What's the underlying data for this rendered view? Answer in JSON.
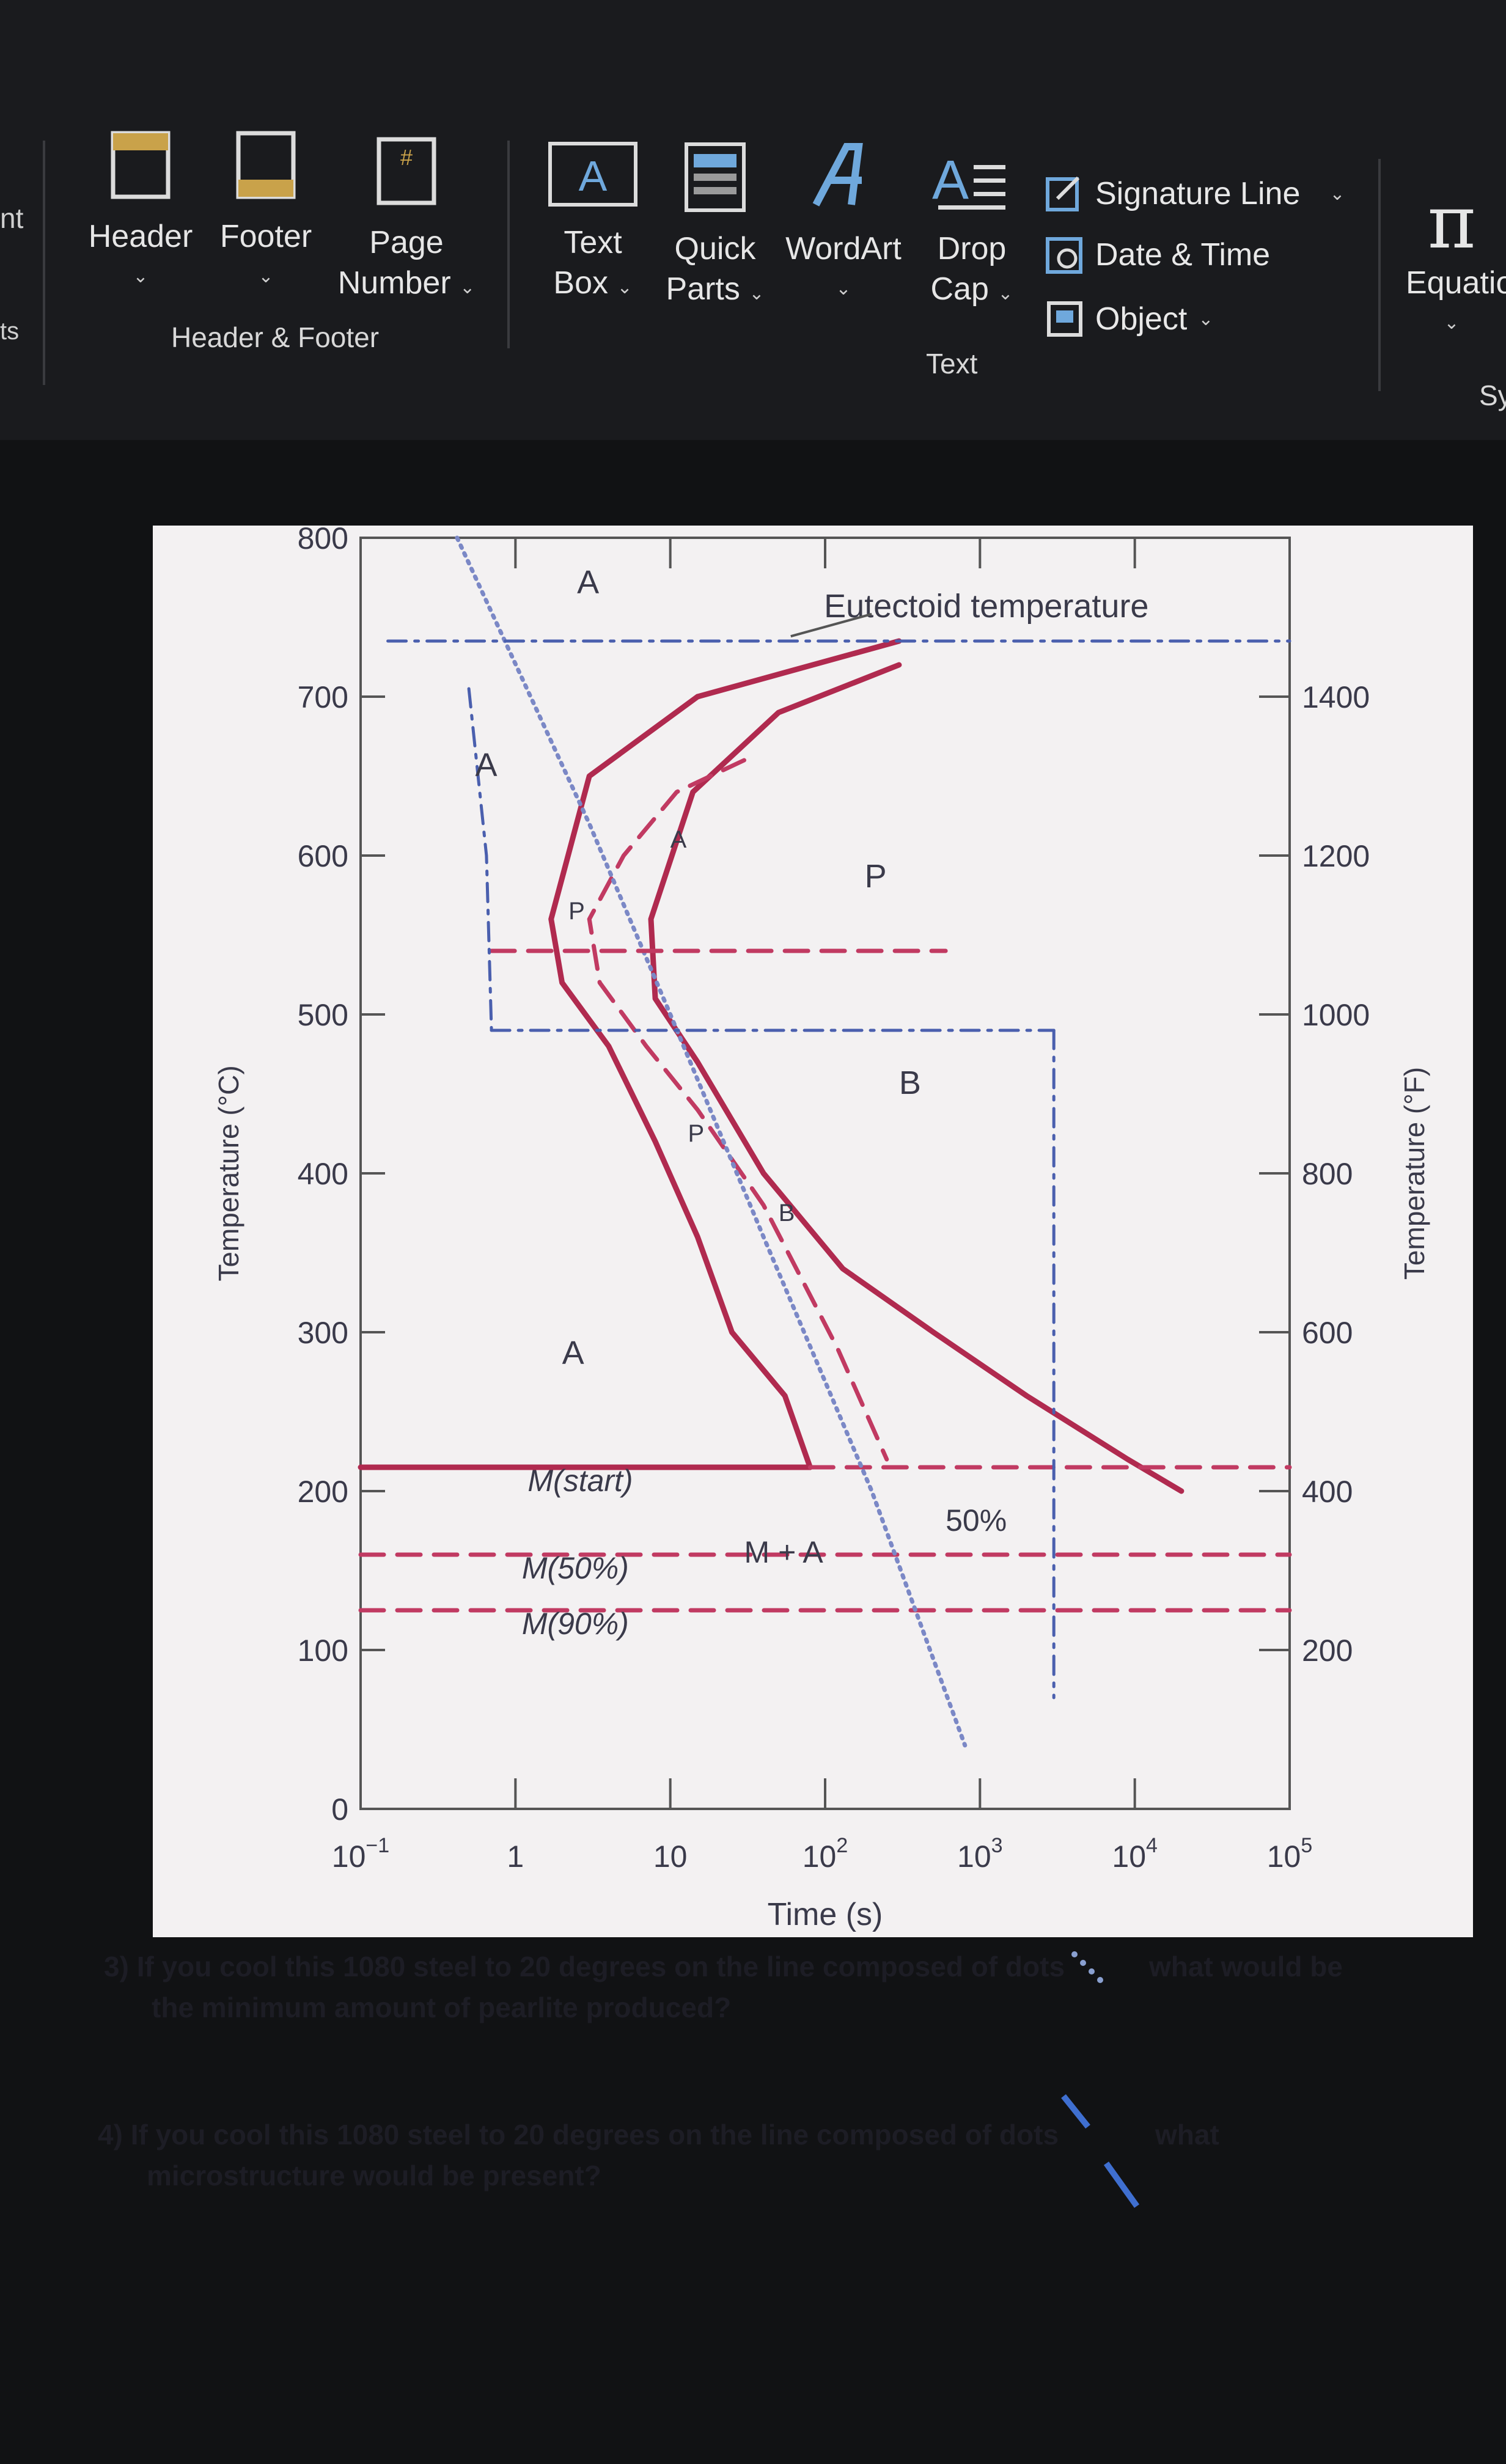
{
  "ribbon": {
    "left_edge_top": "nt",
    "left_edge_bottom": "ts",
    "header": "Header",
    "footer": "Footer",
    "page_number_1": "Page",
    "page_number_2": "Number",
    "group_header_footer": "Header & Footer",
    "text_box_1": "Text",
    "text_box_2": "Box",
    "quick_parts_1": "Quick",
    "quick_parts_2": "Parts",
    "wordart": "WordArt",
    "drop_cap_1": "Drop",
    "drop_cap_2": "Cap",
    "signature_line": "Signature Line",
    "date_time": "Date & Time",
    "object": "Object",
    "group_text": "Text",
    "equation": "Equatio",
    "symbols_partial": "Sy"
  },
  "chart_data": {
    "type": "line",
    "title": "",
    "xlabel": "Time (s)",
    "ylabel": "Temperature (°C)",
    "y2label": "Temperature (°F)",
    "x_scale": "log",
    "xlim": [
      0.1,
      100000
    ],
    "ylim": [
      0,
      800
    ],
    "x_tick_labels": [
      "10",
      "1",
      "10",
      "10",
      "10",
      "10",
      "10"
    ],
    "x_tick_exponents": [
      "−1",
      "",
      "",
      "2",
      "3",
      "4",
      "5"
    ],
    "y_tick_labels": [
      "0",
      "100",
      "200",
      "300",
      "400",
      "500",
      "600",
      "700",
      "800"
    ],
    "y2_tick_labels": [
      "200",
      "400",
      "600",
      "800",
      "1000",
      "1200",
      "1400"
    ],
    "annotations": {
      "eutectoid": "Eutectoid temperature",
      "a_top": "A",
      "a_left": "A",
      "a_lower": "A",
      "p_region": "P",
      "b_region": "B",
      "m_start": "M(start)",
      "m50": "M(50%)",
      "m90": "M(90%)",
      "m_plus_a": "M + A",
      "fifty_pct": "50%",
      "pa_label": "P",
      "a_arrow": "A",
      "pb_label": "P",
      "b_arrow": "B"
    },
    "series": [
      {
        "style": "solid",
        "x": [
          300,
          15,
          3,
          1.7,
          2,
          4,
          8,
          15,
          25,
          55,
          80
        ],
        "y": [
          735,
          700,
          650,
          560,
          520,
          480,
          420,
          360,
          300,
          260,
          215
        ]
      },
      {
        "style": "solid",
        "x": [
          300,
          50,
          14,
          7.5,
          8,
          15,
          40,
          130,
          500,
          2000,
          9000,
          20000
        ],
        "y": [
          720,
          690,
          640,
          560,
          510,
          470,
          400,
          340,
          300,
          260,
          220,
          200
        ]
      },
      {
        "style": "dashed",
        "x": [
          30,
          11,
          5,
          3,
          3.5,
          7,
          15,
          40,
          120,
          250
        ],
        "y": [
          660,
          640,
          600,
          560,
          520,
          480,
          440,
          380,
          290,
          220
        ]
      },
      {
        "style": "solid",
        "x": [
          0.1,
          80
        ],
        "y": [
          215,
          215
        ]
      },
      {
        "style": "dashed",
        "x": [
          0.1,
          100000
        ],
        "y": [
          160,
          160
        ]
      },
      {
        "style": "dashed",
        "x": [
          0.1,
          100000
        ],
        "y": [
          125,
          125
        ]
      },
      {
        "style": "dashed",
        "x": [
          80,
          100000
        ],
        "y": [
          215,
          215
        ]
      },
      {
        "style": "dotted",
        "x": [
          0.42,
          3,
          10,
          40,
          200,
          800
        ],
        "y": [
          800,
          620,
          500,
          360,
          200,
          40
        ]
      },
      {
        "style": "dashdot",
        "x": [
          0.15,
          100000
        ],
        "y": [
          735,
          735
        ]
      },
      {
        "style": "dashdot",
        "x": [
          0.7,
          3000
        ],
        "y": [
          490,
          490
        ]
      },
      {
        "style": "dashed",
        "x": [
          0.7,
          600
        ],
        "y": [
          540,
          540
        ]
      },
      {
        "style": "dashdot",
        "x": [
          3000,
          3000
        ],
        "y": [
          490,
          70
        ]
      },
      {
        "style": "dashdot",
        "x": [
          0.5,
          0.65,
          0.7
        ],
        "y": [
          705,
          600,
          490
        ]
      }
    ]
  },
  "questions": [
    {
      "num": "3)",
      "line1": "If you cool this 1080 steel to 20 degrees on the line composed of dots",
      "line1_end": "what would be",
      "line2": "the minimum amount of pearlite produced?"
    },
    {
      "num": "4)",
      "line1": "If you cool this 1080 steel to 20 degrees on the line composed of dots",
      "line1_end": "what",
      "line2": "microstructure would be present?"
    }
  ]
}
